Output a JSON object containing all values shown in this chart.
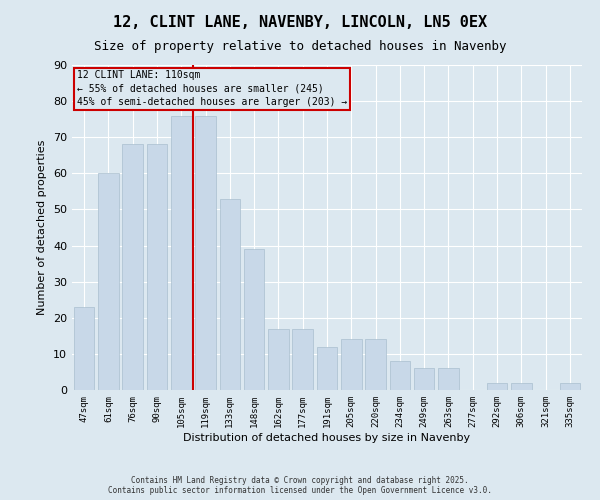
{
  "title": "12, CLINT LANE, NAVENBY, LINCOLN, LN5 0EX",
  "subtitle": "Size of property relative to detached houses in Navenby",
  "xlabel": "Distribution of detached houses by size in Navenby",
  "ylabel": "Number of detached properties",
  "categories": [
    "47sqm",
    "61sqm",
    "76sqm",
    "90sqm",
    "105sqm",
    "119sqm",
    "133sqm",
    "148sqm",
    "162sqm",
    "177sqm",
    "191sqm",
    "205sqm",
    "220sqm",
    "234sqm",
    "249sqm",
    "263sqm",
    "277sqm",
    "292sqm",
    "306sqm",
    "321sqm",
    "335sqm"
  ],
  "values": [
    23,
    60,
    68,
    68,
    76,
    76,
    53,
    39,
    17,
    17,
    12,
    14,
    14,
    8,
    6,
    6,
    0,
    2,
    2,
    0,
    2
  ],
  "bar_color": "#c8d8e8",
  "bar_edge_color": "#aabfcf",
  "highlight_line_index": 4,
  "annotation_title": "12 CLINT LANE: 110sqm",
  "annotation_line1": "← 55% of detached houses are smaller (245)",
  "annotation_line2": "45% of semi-detached houses are larger (203) →",
  "annotation_box_color": "#cc0000",
  "ylim": [
    0,
    90
  ],
  "yticks": [
    0,
    10,
    20,
    30,
    40,
    50,
    60,
    70,
    80,
    90
  ],
  "background_color": "#dce8f0",
  "grid_color": "#ffffff",
  "footer_line1": "Contains HM Land Registry data © Crown copyright and database right 2025.",
  "footer_line2": "Contains public sector information licensed under the Open Government Licence v3.0."
}
